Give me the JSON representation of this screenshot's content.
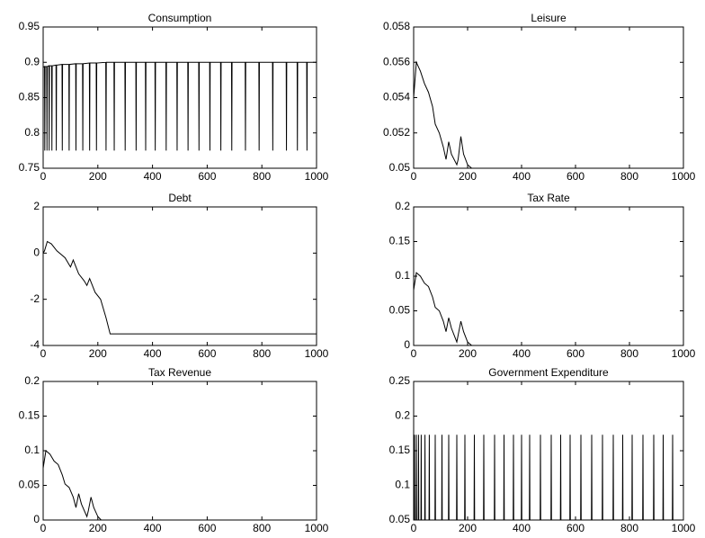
{
  "chart_data": [
    {
      "type": "line",
      "title": "Consumption",
      "color": "#000000",
      "x": [
        0,
        5,
        6,
        7,
        13,
        14,
        15,
        21,
        22,
        23,
        31,
        32,
        33,
        47,
        48,
        49,
        69,
        70,
        71,
        94,
        95,
        96,
        119,
        120,
        121,
        144,
        145,
        146,
        169,
        170,
        171,
        194,
        195,
        196,
        229,
        230,
        231,
        259,
        260,
        261,
        299,
        300,
        301,
        339,
        340,
        341,
        374,
        375,
        376,
        409,
        410,
        411,
        449,
        450,
        451,
        489,
        490,
        491,
        529,
        530,
        531,
        569,
        570,
        571,
        609,
        610,
        611,
        649,
        650,
        651,
        689,
        690,
        691,
        739,
        740,
        741,
        789,
        790,
        791,
        839,
        840,
        841,
        889,
        890,
        891,
        929,
        930,
        931,
        964,
        965,
        966,
        1000
      ],
      "values": [
        0.893,
        0.894,
        0.775,
        0.894,
        0.894,
        0.775,
        0.894,
        0.895,
        0.775,
        0.895,
        0.895,
        0.775,
        0.895,
        0.896,
        0.775,
        0.896,
        0.897,
        0.775,
        0.897,
        0.897,
        0.775,
        0.897,
        0.898,
        0.775,
        0.898,
        0.898,
        0.775,
        0.898,
        0.899,
        0.775,
        0.899,
        0.899,
        0.775,
        0.899,
        0.9,
        0.775,
        0.9,
        0.9,
        0.775,
        0.9,
        0.9,
        0.775,
        0.9,
        0.9,
        0.775,
        0.9,
        0.9,
        0.775,
        0.9,
        0.9,
        0.775,
        0.9,
        0.9,
        0.775,
        0.9,
        0.9,
        0.775,
        0.9,
        0.9,
        0.775,
        0.9,
        0.9,
        0.775,
        0.9,
        0.9,
        0.775,
        0.9,
        0.9,
        0.775,
        0.9,
        0.9,
        0.775,
        0.9,
        0.9,
        0.775,
        0.9,
        0.9,
        0.775,
        0.9,
        0.9,
        0.775,
        0.9,
        0.9,
        0.775,
        0.9,
        0.9,
        0.775,
        0.9,
        0.9,
        0.775,
        0.9,
        0.9
      ],
      "xlim": [
        0,
        1000
      ],
      "xticks": [
        0,
        200,
        400,
        600,
        800,
        1000
      ],
      "ylim": [
        0.75,
        0.95
      ],
      "yticks": [
        0.75,
        0.8,
        0.85,
        0.9,
        0.95
      ]
    },
    {
      "type": "line",
      "title": "Leisure",
      "color": "#000000",
      "x": [
        0,
        10,
        25,
        40,
        55,
        70,
        80,
        95,
        110,
        120,
        130,
        140,
        160,
        165,
        175,
        185,
        200,
        215
      ],
      "values": [
        0.054,
        0.056,
        0.0555,
        0.0548,
        0.0543,
        0.0535,
        0.0525,
        0.052,
        0.0512,
        0.0505,
        0.0515,
        0.0508,
        0.0502,
        0.0505,
        0.0518,
        0.0508,
        0.0502,
        0.05
      ],
      "xlim": [
        0,
        1000
      ],
      "xticks": [
        0,
        200,
        400,
        600,
        800,
        1000
      ],
      "ylim": [
        0.05,
        0.058
      ],
      "yticks": [
        0.05,
        0.052,
        0.054,
        0.056,
        0.058
      ]
    },
    {
      "type": "line",
      "title": "Debt",
      "color": "#000000",
      "x": [
        0,
        5,
        15,
        30,
        50,
        80,
        100,
        110,
        130,
        150,
        160,
        170,
        190,
        210,
        230,
        245,
        1000
      ],
      "values": [
        0,
        0.1,
        0.5,
        0.4,
        0.1,
        -0.2,
        -0.6,
        -0.3,
        -0.9,
        -1.2,
        -1.4,
        -1.1,
        -1.7,
        -2.0,
        -2.8,
        -3.5,
        -3.5
      ],
      "xlim": [
        0,
        1000
      ],
      "xticks": [
        0,
        200,
        400,
        600,
        800,
        1000
      ],
      "ylim": [
        -4,
        2
      ],
      "yticks": [
        -4,
        -2,
        0,
        2
      ]
    },
    {
      "type": "line",
      "title": "Tax Rate",
      "color": "#000000",
      "x": [
        0,
        10,
        25,
        40,
        55,
        70,
        80,
        95,
        110,
        120,
        130,
        140,
        160,
        165,
        175,
        185,
        200,
        215
      ],
      "values": [
        0.08,
        0.105,
        0.1,
        0.09,
        0.085,
        0.07,
        0.055,
        0.05,
        0.035,
        0.02,
        0.04,
        0.025,
        0.005,
        0.015,
        0.035,
        0.02,
        0.005,
        0
      ],
      "xlim": [
        0,
        1000
      ],
      "xticks": [
        0,
        200,
        400,
        600,
        800,
        1000
      ],
      "ylim": [
        0,
        0.2
      ],
      "yticks": [
        0,
        0.05,
        0.1,
        0.15,
        0.2
      ]
    },
    {
      "type": "line",
      "title": "Tax Revenue",
      "color": "#000000",
      "x": [
        0,
        10,
        25,
        40,
        55,
        70,
        80,
        95,
        110,
        120,
        130,
        140,
        160,
        165,
        175,
        185,
        200,
        212
      ],
      "values": [
        0.075,
        0.1,
        0.095,
        0.085,
        0.08,
        0.065,
        0.052,
        0.047,
        0.033,
        0.018,
        0.038,
        0.023,
        0.005,
        0.013,
        0.033,
        0.018,
        0.005,
        0
      ],
      "xlim": [
        0,
        1000
      ],
      "xticks": [
        0,
        200,
        400,
        600,
        800,
        1000
      ],
      "ylim": [
        0,
        0.2
      ],
      "yticks": [
        0,
        0.05,
        0.1,
        0.15,
        0.2
      ]
    },
    {
      "type": "line",
      "title": "Government Expenditure",
      "color": "#000000",
      "x": [
        0,
        2,
        3,
        4,
        9,
        10,
        11,
        17,
        18,
        19,
        27,
        28,
        29,
        41,
        42,
        43,
        57,
        58,
        59,
        79,
        80,
        81,
        104,
        105,
        106,
        129,
        130,
        131,
        159,
        160,
        161,
        189,
        190,
        191,
        224,
        225,
        226,
        259,
        260,
        261,
        299,
        300,
        301,
        334,
        335,
        336,
        369,
        370,
        371,
        399,
        400,
        401,
        429,
        430,
        431,
        469,
        470,
        471,
        509,
        510,
        511,
        544,
        545,
        546,
        579,
        580,
        581,
        619,
        620,
        621,
        659,
        660,
        661,
        699,
        700,
        701,
        739,
        740,
        741,
        774,
        775,
        776,
        809,
        810,
        811,
        849,
        850,
        851,
        889,
        890,
        891,
        924,
        925,
        926,
        959,
        960,
        961,
        1000
      ],
      "values": [
        0.05,
        0.05,
        0.173,
        0.05,
        0.05,
        0.173,
        0.05,
        0.05,
        0.173,
        0.05,
        0.05,
        0.173,
        0.05,
        0.05,
        0.173,
        0.05,
        0.05,
        0.173,
        0.05,
        0.05,
        0.173,
        0.05,
        0.05,
        0.173,
        0.05,
        0.05,
        0.173,
        0.05,
        0.05,
        0.173,
        0.05,
        0.05,
        0.173,
        0.05,
        0.05,
        0.173,
        0.05,
        0.05,
        0.173,
        0.05,
        0.05,
        0.173,
        0.05,
        0.05,
        0.173,
        0.05,
        0.05,
        0.173,
        0.05,
        0.05,
        0.173,
        0.05,
        0.05,
        0.173,
        0.05,
        0.05,
        0.173,
        0.05,
        0.05,
        0.173,
        0.05,
        0.05,
        0.173,
        0.05,
        0.05,
        0.173,
        0.05,
        0.05,
        0.173,
        0.05,
        0.05,
        0.173,
        0.05,
        0.05,
        0.173,
        0.05,
        0.05,
        0.173,
        0.05,
        0.05,
        0.173,
        0.05,
        0.05,
        0.173,
        0.05,
        0.05,
        0.173,
        0.05,
        0.05,
        0.173,
        0.05,
        0.05,
        0.173,
        0.05,
        0.05,
        0.173,
        0.05,
        0.05
      ],
      "xlim": [
        0,
        1000
      ],
      "xticks": [
        0,
        200,
        400,
        600,
        800,
        1000
      ],
      "ylim": [
        0.05,
        0.25
      ],
      "yticks": [
        0.05,
        0.1,
        0.15,
        0.2,
        0.25
      ]
    }
  ]
}
